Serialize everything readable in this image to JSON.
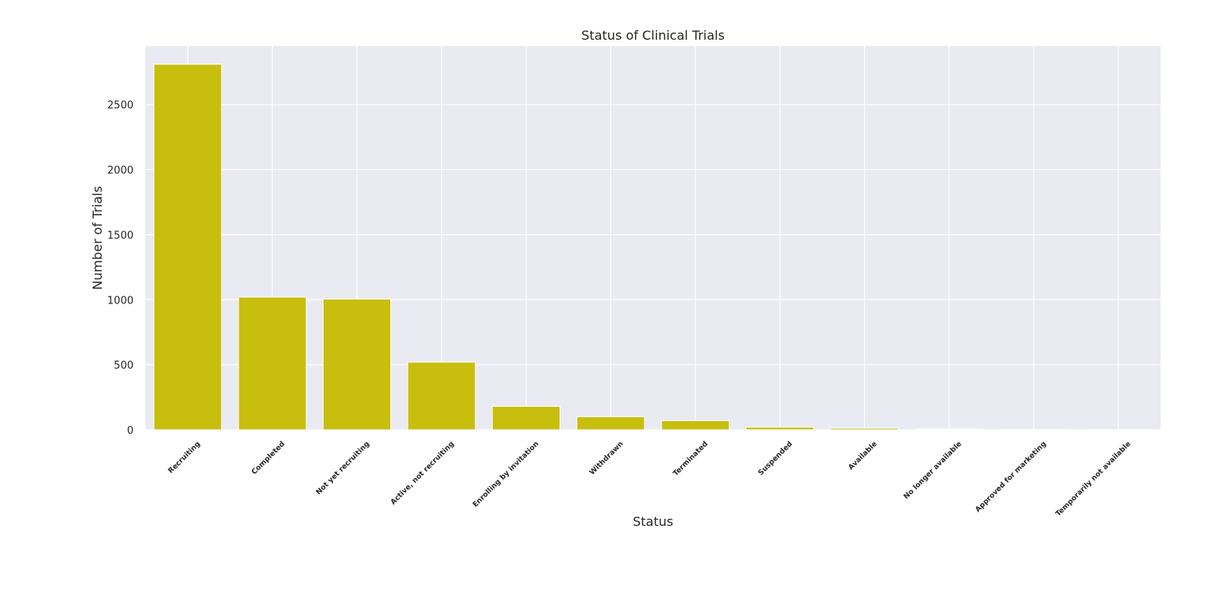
{
  "chart_data": {
    "type": "bar",
    "title": "Status of Clinical Trials",
    "xlabel": "Status",
    "ylabel": "Number of Trials",
    "categories": [
      "Recruiting",
      "Completed",
      "Not yet recruiting",
      "Active, not recruiting",
      "Enrolling by invitation",
      "Withdrawn",
      "Terminated",
      "Suspended",
      "Available",
      "No longer available",
      "Approved for marketing",
      "Temporarily not available"
    ],
    "values": [
      2810,
      1020,
      1005,
      520,
      180,
      100,
      70,
      20,
      12,
      6,
      2,
      1
    ],
    "ylim": [
      0,
      2950
    ],
    "yticks": [
      0,
      500,
      1000,
      1500,
      2000,
      2500
    ],
    "grid": true,
    "bar_color": "#c8be0e",
    "background_color": "#eaeaf2",
    "grid_color": "#ffffff"
  }
}
